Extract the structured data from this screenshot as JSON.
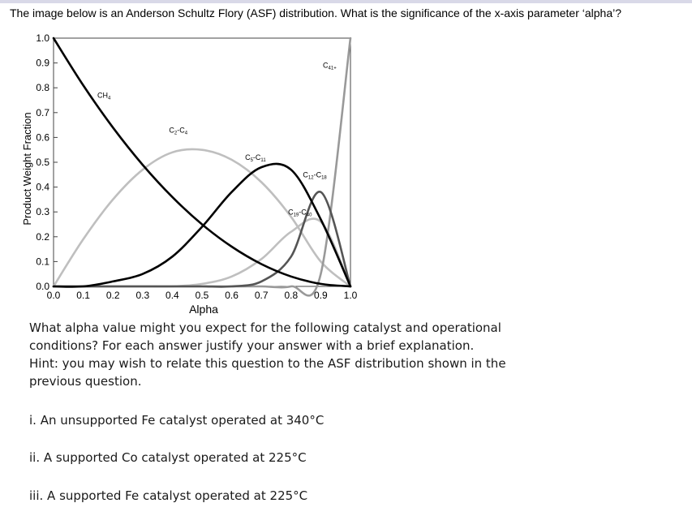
{
  "header": {
    "question": "The image below is an Anderson Schultz Flory (ASF) distribution.  What is the significance of the x-axis parameter ‘alpha’?"
  },
  "chart_data": {
    "type": "line",
    "xlabel": "Alpha",
    "ylabel": "Product Weight Fraction",
    "xlim": [
      0,
      1
    ],
    "ylim": [
      0,
      1
    ],
    "xticks": [
      "0.0",
      "0.1",
      "0.2",
      "0.3",
      "0.4",
      "0.5",
      "0.6",
      "0.7",
      "0.8",
      "0.9",
      "1.0"
    ],
    "yticks": [
      "0.0",
      "0.1",
      "0.2",
      "0.3",
      "0.4",
      "0.5",
      "0.6",
      "0.7",
      "0.8",
      "0.9",
      "1.0"
    ],
    "grid": false,
    "legend": "none",
    "series": [
      {
        "name": "CH4",
        "label_main": "CH",
        "label_sub": "4",
        "color": "#000000",
        "x": [
          0,
          0.1,
          0.2,
          0.3,
          0.4,
          0.5,
          0.6,
          0.7,
          0.8,
          0.9,
          1.0
        ],
        "y": [
          1.0,
          0.81,
          0.64,
          0.49,
          0.36,
          0.25,
          0.16,
          0.09,
          0.04,
          0.01,
          0.0
        ]
      },
      {
        "name": "C2-C4",
        "label_main": "C",
        "label_sub": "2",
        "label_mid": "-C",
        "label_sub2": "4",
        "color": "#bfbfbf",
        "x": [
          0,
          0.1,
          0.2,
          0.3,
          0.4,
          0.5,
          0.6,
          0.7,
          0.8,
          0.9,
          1.0
        ],
        "y": [
          0.0,
          0.19,
          0.35,
          0.47,
          0.54,
          0.55,
          0.51,
          0.42,
          0.28,
          0.1,
          0.0
        ]
      },
      {
        "name": "C5-C11",
        "label_main": "C",
        "label_sub": "5",
        "label_mid": "-C",
        "label_sub2": "11",
        "color": "#000000",
        "x": [
          0,
          0.1,
          0.2,
          0.3,
          0.4,
          0.5,
          0.6,
          0.7,
          0.8,
          0.9,
          1.0
        ],
        "y": [
          0.0,
          0.0,
          0.02,
          0.05,
          0.12,
          0.24,
          0.38,
          0.48,
          0.47,
          0.27,
          0.0
        ]
      },
      {
        "name": "C12-C18",
        "label_main": "C",
        "label_sub": "12",
        "label_mid": "-C",
        "label_sub2": "18",
        "color": "#bfbfbf",
        "x": [
          0,
          0.1,
          0.2,
          0.3,
          0.4,
          0.5,
          0.6,
          0.7,
          0.8,
          0.9,
          1.0
        ],
        "y": [
          0.0,
          0.0,
          0.0,
          0.0,
          0.0,
          0.01,
          0.04,
          0.11,
          0.22,
          0.26,
          0.0
        ]
      },
      {
        "name": "C19-C40",
        "label_main": "C",
        "label_sub": "19",
        "label_mid": "-C",
        "label_sub2": "40",
        "color": "#555555",
        "x": [
          0,
          0.1,
          0.2,
          0.3,
          0.4,
          0.5,
          0.6,
          0.7,
          0.8,
          0.9,
          1.0
        ],
        "y": [
          0.0,
          0.0,
          0.0,
          0.0,
          0.0,
          0.0,
          0.0,
          0.02,
          0.12,
          0.38,
          0.0
        ]
      },
      {
        "name": "C41+",
        "label_main": "C",
        "label_sub": "41+",
        "color": "#999999",
        "x": [
          0,
          0.1,
          0.2,
          0.3,
          0.4,
          0.5,
          0.6,
          0.7,
          0.8,
          0.9,
          1.0
        ],
        "y": [
          0.0,
          0.0,
          0.0,
          0.0,
          0.0,
          0.0,
          0.0,
          0.0,
          0.0,
          0.05,
          1.0
        ]
      }
    ]
  },
  "body": {
    "paragraph_lines": [
      "What alpha value might you expect for the following catalyst and operational",
      "conditions? For each answer justify your answer with a brief explanation.",
      "Hint: you may wish to relate this question to the ASF distribution shown in the",
      "previous question."
    ],
    "item_i": "i.  An unsupported Fe catalyst operated at 340°C",
    "item_ii": "ii. A supported Co catalyst operated at 225°C",
    "item_iii": "iii. A supported Fe catalyst operated at 225°C"
  }
}
